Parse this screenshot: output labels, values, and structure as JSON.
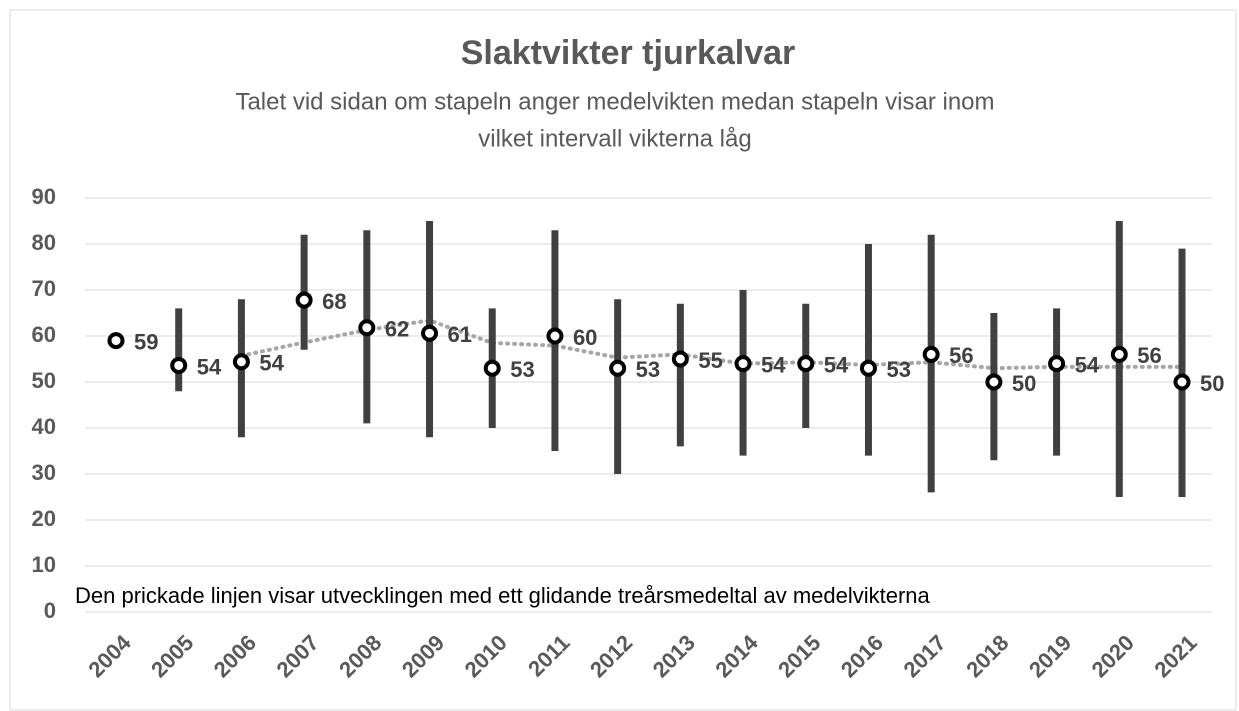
{
  "chart_data": {
    "type": "range_dot",
    "title": "Slaktvikter tjurkalvar",
    "subtitle": [
      "Talet vid sidan om stapeln anger medelvikten medan stapeln visar inom",
      "vilket intervall vikterna låg"
    ],
    "annotation": "Den prickade linjen visar utvecklingen med ett glidande treårsmedeltal av medelvikterna",
    "categories": [
      "2004",
      "2005",
      "2006",
      "2007",
      "2008",
      "2009",
      "2010",
      "2011",
      "2012",
      "2013",
      "2014",
      "2015",
      "2016",
      "2017",
      "2018",
      "2019",
      "2020",
      "2021"
    ],
    "values": [
      59,
      53.6,
      54.4,
      67.8,
      61.8,
      60.6,
      53,
      60,
      53,
      55,
      54,
      54,
      53,
      56,
      50,
      54,
      56,
      50
    ],
    "value_labels": [
      "59",
      "54",
      "54",
      "68",
      "62",
      "61",
      "53",
      "60",
      "53",
      "55",
      "54",
      "54",
      "53",
      "56",
      "50",
      "54",
      "56",
      "50"
    ],
    "low": [
      null,
      48,
      38,
      57,
      41,
      38,
      40,
      35,
      30,
      36,
      34,
      40,
      34,
      26,
      33,
      34,
      25,
      25
    ],
    "high": [
      null,
      66,
      68,
      82,
      83,
      85,
      66,
      83,
      68,
      67,
      70,
      67,
      80,
      82,
      65,
      66,
      85,
      79
    ],
    "moving_average": [
      null,
      null,
      55.7,
      58.6,
      61.3,
      63.4,
      58.5,
      57.9,
      55.3,
      56,
      54,
      54.3,
      53.7,
      54.3,
      53,
      53.3,
      53.3,
      53.3
    ],
    "bar_color": "#404040",
    "marker_color": "#000000",
    "line_color": "#a6a6a6",
    "ylim": [
      0,
      90
    ],
    "yticks": [
      0,
      10,
      20,
      30,
      40,
      50,
      60,
      70,
      80,
      90
    ],
    "grid": true
  }
}
